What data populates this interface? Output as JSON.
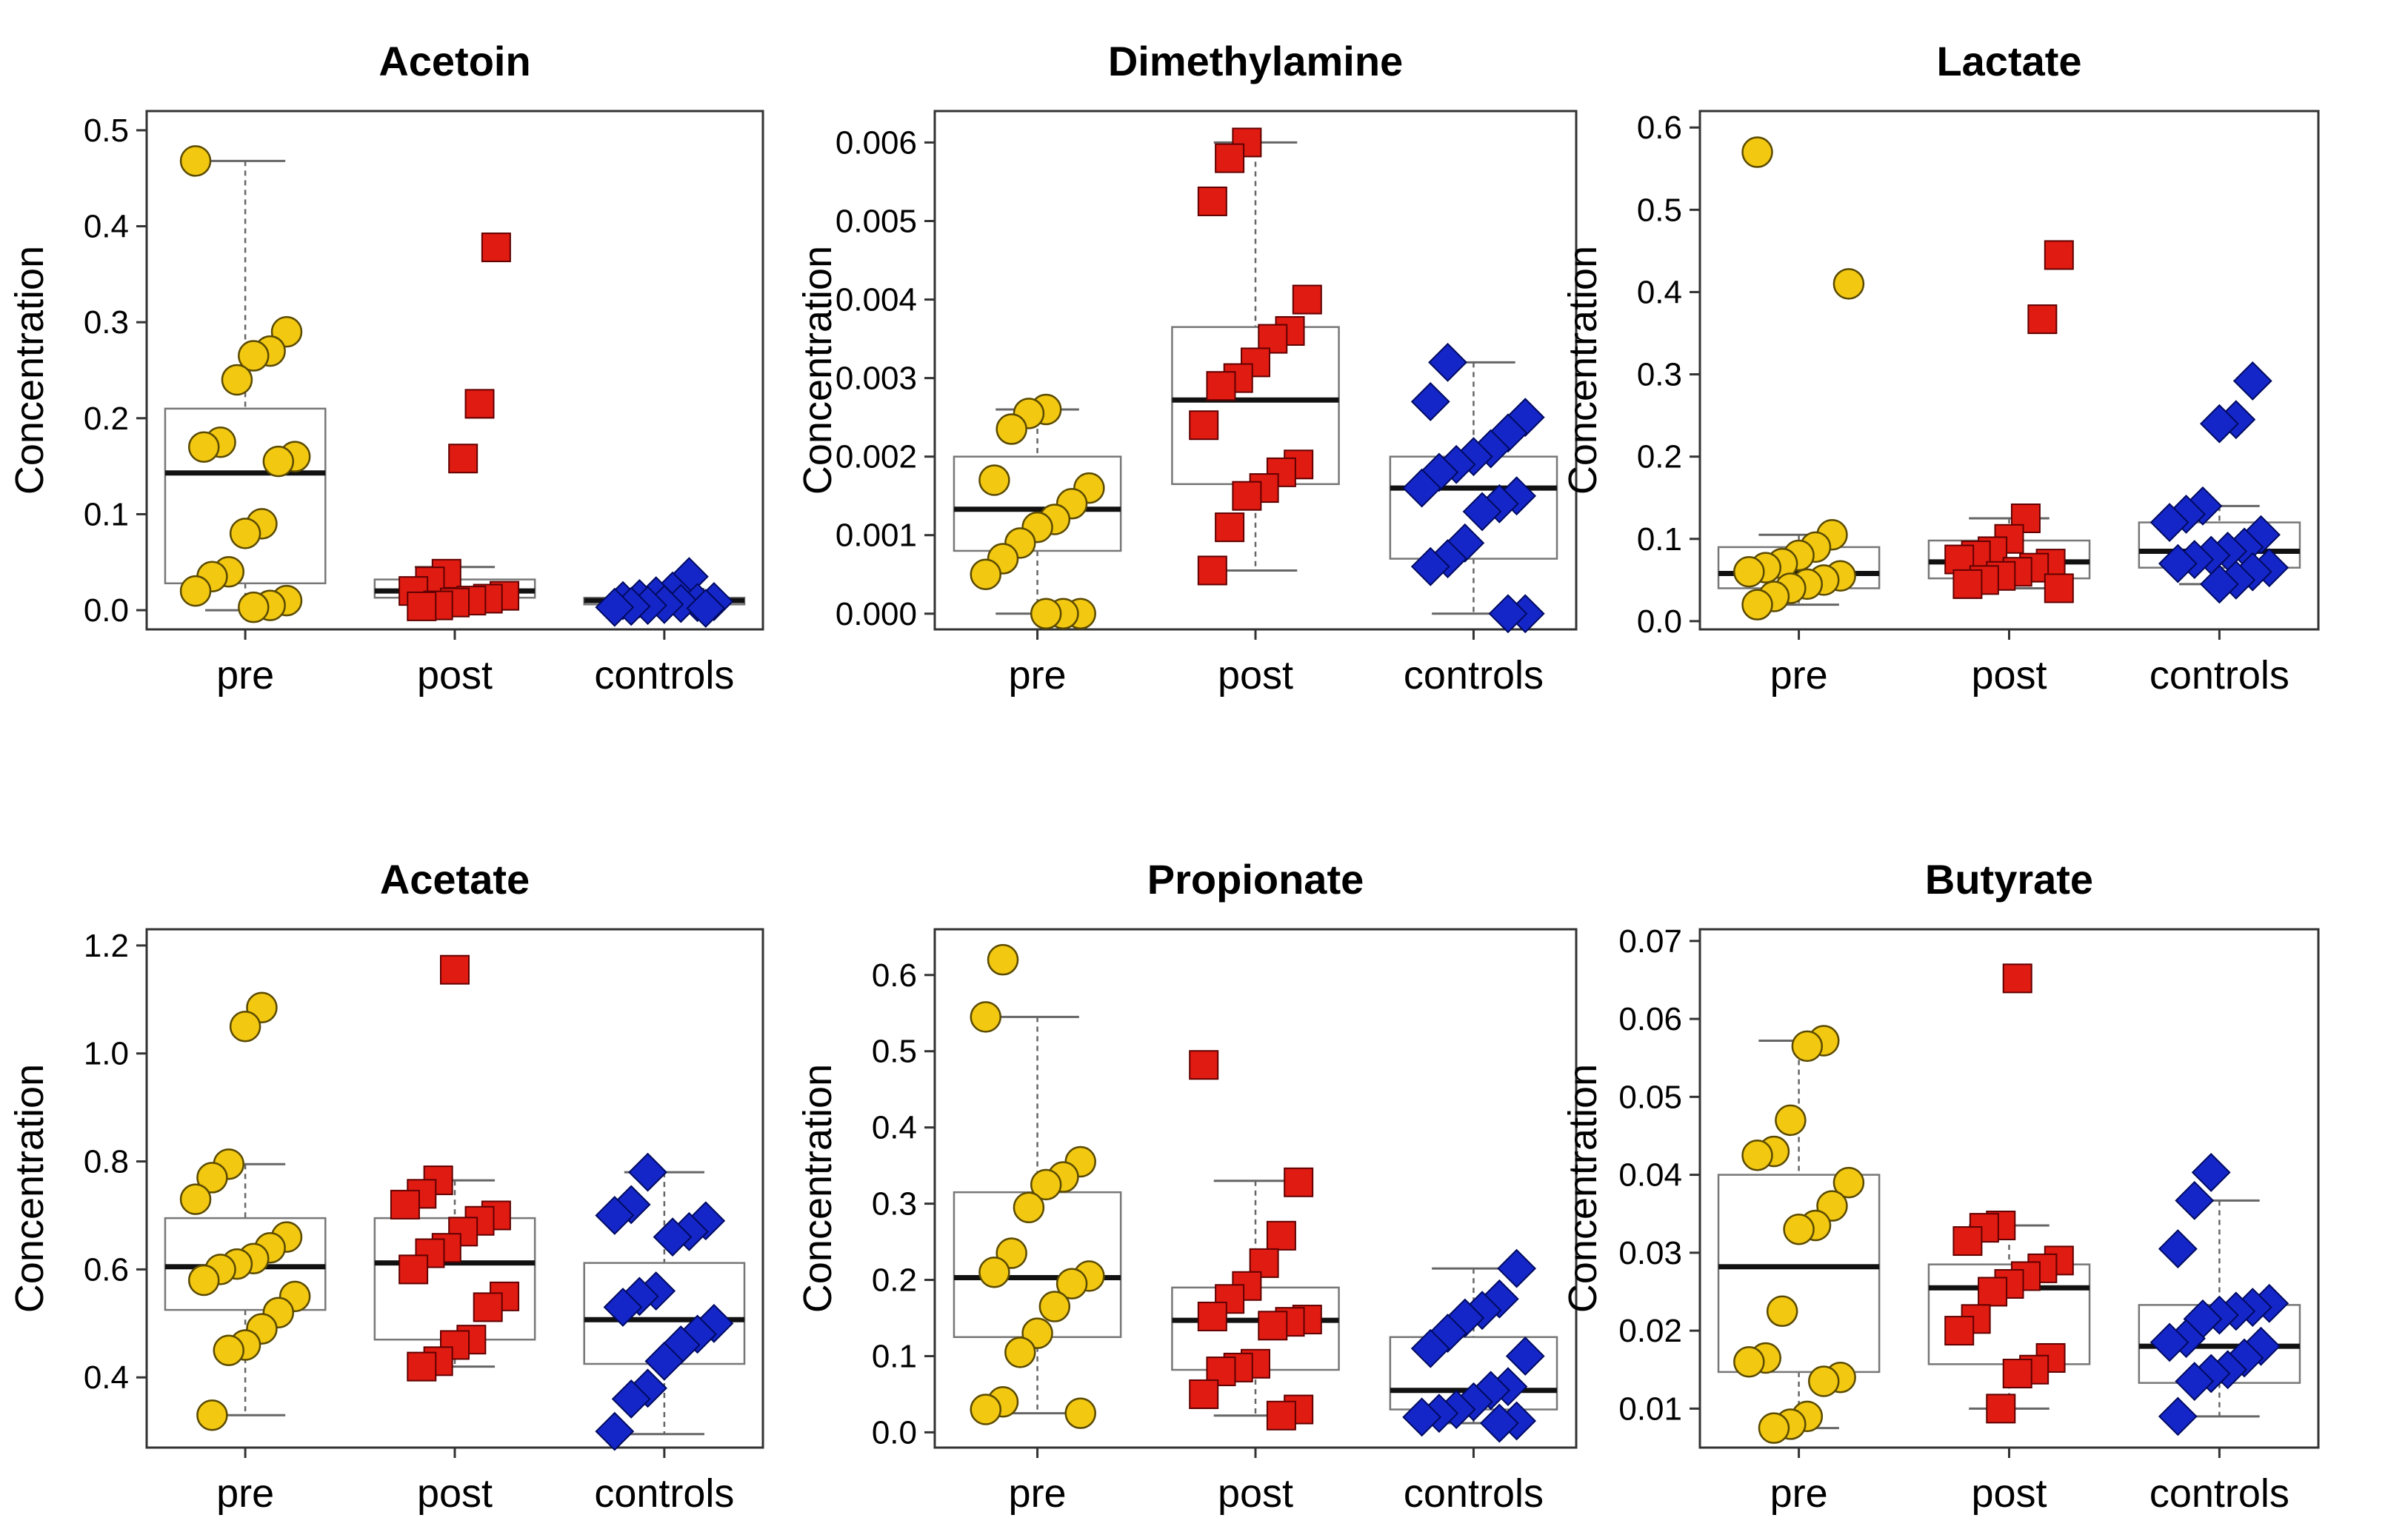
{
  "figure": {
    "group_colors": {
      "pre": "#f2c811",
      "post": "#e01b12",
      "controls": "#1526c8"
    },
    "marker_shapes": {
      "pre": "circle",
      "post": "square",
      "controls": "diamond"
    }
  },
  "chart_data": [
    {
      "type": "box",
      "title": "Acetoin",
      "ylabel": "Concentration",
      "ylim": [
        -0.02,
        0.52
      ],
      "yticks": [
        0.0,
        0.1,
        0.2,
        0.3,
        0.4,
        0.5
      ],
      "tick_labels": [
        "0.0",
        "0.1",
        "0.2",
        "0.3",
        "0.4",
        "0.5"
      ],
      "categories": [
        "pre",
        "post",
        "controls"
      ],
      "boxes": [
        {
          "whisker_low": 0.0,
          "q1": 0.028,
          "median": 0.143,
          "q3": 0.21,
          "whisker_high": 0.468
        },
        {
          "whisker_low": 0.005,
          "q1": 0.013,
          "median": 0.02,
          "q3": 0.032,
          "whisker_high": 0.045
        },
        {
          "whisker_low": 0.002,
          "q1": 0.006,
          "median": 0.01,
          "q3": 0.013,
          "whisker_high": 0.022
        }
      ],
      "points": [
        [
          0.468,
          0.29,
          0.27,
          0.265,
          0.24,
          0.175,
          0.17,
          0.16,
          0.155,
          0.09,
          0.08,
          0.04,
          0.035,
          0.02,
          0.01,
          0.005,
          0.003
        ],
        [
          0.378,
          0.215,
          0.158,
          0.038,
          0.03,
          0.02,
          0.015,
          0.012,
          0.01,
          0.008,
          0.005,
          0.004
        ],
        [
          0.035,
          0.02,
          0.015,
          0.012,
          0.01,
          0.009,
          0.008,
          0.007,
          0.006,
          0.005,
          0.004,
          0.003,
          0.002
        ]
      ]
    },
    {
      "type": "box",
      "title": "Dimethylamine",
      "ylabel": "Concentration",
      "ylim": [
        -0.0002,
        0.0064
      ],
      "yticks": [
        0.0,
        0.001,
        0.002,
        0.003,
        0.004,
        0.005,
        0.006
      ],
      "tick_labels": [
        "0.000",
        "0.001",
        "0.002",
        "0.003",
        "0.004",
        "0.005",
        "0.006"
      ],
      "categories": [
        "pre",
        "post",
        "controls"
      ],
      "boxes": [
        {
          "whisker_low": 0.0,
          "q1": 0.0008,
          "median": 0.00133,
          "q3": 0.002,
          "whisker_high": 0.0026
        },
        {
          "whisker_low": 0.00055,
          "q1": 0.00165,
          "median": 0.00272,
          "q3": 0.00365,
          "whisker_high": 0.006
        },
        {
          "whisker_low": 0.0,
          "q1": 0.0007,
          "median": 0.0016,
          "q3": 0.002,
          "whisker_high": 0.0032
        }
      ],
      "points": [
        [
          0.0026,
          0.00255,
          0.00235,
          0.0017,
          0.0016,
          0.0014,
          0.0012,
          0.0011,
          0.0009,
          0.0007,
          0.0005,
          0.0,
          0.0,
          0.0
        ],
        [
          0.006,
          0.0058,
          0.00525,
          0.004,
          0.0036,
          0.0035,
          0.0032,
          0.003,
          0.0029,
          0.0024,
          0.0019,
          0.0018,
          0.0016,
          0.0015,
          0.0011,
          0.00055
        ],
        [
          0.0032,
          0.0027,
          0.0025,
          0.0023,
          0.0021,
          0.002,
          0.0019,
          0.0018,
          0.0016,
          0.0015,
          0.0014,
          0.0013,
          0.0009,
          0.0007,
          0.0006,
          0.0,
          0.0
        ]
      ]
    },
    {
      "type": "box",
      "title": "Lactate",
      "ylabel": "Concentration",
      "ylim": [
        -0.01,
        0.62
      ],
      "yticks": [
        0.0,
        0.1,
        0.2,
        0.3,
        0.4,
        0.5,
        0.6
      ],
      "tick_labels": [
        "0.0",
        "0.1",
        "0.2",
        "0.3",
        "0.4",
        "0.5",
        "0.6"
      ],
      "categories": [
        "pre",
        "post",
        "controls"
      ],
      "boxes": [
        {
          "whisker_low": 0.02,
          "q1": 0.04,
          "median": 0.058,
          "q3": 0.09,
          "whisker_high": 0.105
        },
        {
          "whisker_low": 0.04,
          "q1": 0.052,
          "median": 0.072,
          "q3": 0.098,
          "whisker_high": 0.125
        },
        {
          "whisker_low": 0.045,
          "q1": 0.065,
          "median": 0.085,
          "q3": 0.12,
          "whisker_high": 0.14
        }
      ],
      "points": [
        [
          0.57,
          0.41,
          0.105,
          0.09,
          0.08,
          0.07,
          0.065,
          0.06,
          0.055,
          0.05,
          0.045,
          0.04,
          0.03,
          0.02
        ],
        [
          0.445,
          0.367,
          0.125,
          0.1,
          0.085,
          0.08,
          0.075,
          0.07,
          0.065,
          0.06,
          0.055,
          0.05,
          0.045,
          0.04
        ],
        [
          0.292,
          0.245,
          0.24,
          0.14,
          0.13,
          0.12,
          0.105,
          0.09,
          0.085,
          0.08,
          0.075,
          0.07,
          0.065,
          0.06,
          0.05,
          0.045
        ]
      ]
    },
    {
      "type": "box",
      "title": "Acetate",
      "ylabel": "Concentration",
      "ylim": [
        0.27,
        1.23
      ],
      "yticks": [
        0.4,
        0.6,
        0.8,
        1.0,
        1.2
      ],
      "tick_labels": [
        "0.4",
        "0.6",
        "0.8",
        "1.0",
        "1.2"
      ],
      "categories": [
        "pre",
        "post",
        "controls"
      ],
      "boxes": [
        {
          "whisker_low": 0.33,
          "q1": 0.525,
          "median": 0.605,
          "q3": 0.695,
          "whisker_high": 0.795
        },
        {
          "whisker_low": 0.42,
          "q1": 0.47,
          "median": 0.612,
          "q3": 0.695,
          "whisker_high": 0.765
        },
        {
          "whisker_low": 0.295,
          "q1": 0.425,
          "median": 0.507,
          "q3": 0.612,
          "whisker_high": 0.78
        }
      ],
      "points": [
        [
          1.085,
          1.05,
          0.795,
          0.77,
          0.73,
          0.66,
          0.64,
          0.62,
          0.61,
          0.6,
          0.58,
          0.55,
          0.52,
          0.49,
          0.46,
          0.45,
          0.33
        ],
        [
          1.155,
          0.765,
          0.74,
          0.72,
          0.7,
          0.69,
          0.67,
          0.64,
          0.63,
          0.6,
          0.55,
          0.53,
          0.47,
          0.46,
          0.43,
          0.42
        ],
        [
          0.78,
          0.72,
          0.7,
          0.69,
          0.67,
          0.66,
          0.56,
          0.55,
          0.53,
          0.5,
          0.48,
          0.46,
          0.43,
          0.38,
          0.36,
          0.3
        ]
      ]
    },
    {
      "type": "box",
      "title": "Propionate",
      "ylabel": "Concentration",
      "ylim": [
        -0.02,
        0.66
      ],
      "yticks": [
        0.0,
        0.1,
        0.2,
        0.3,
        0.4,
        0.5,
        0.6
      ],
      "tick_labels": [
        "0.0",
        "0.1",
        "0.2",
        "0.3",
        "0.4",
        "0.5",
        "0.6"
      ],
      "categories": [
        "pre",
        "post",
        "controls"
      ],
      "boxes": [
        {
          "whisker_low": 0.025,
          "q1": 0.125,
          "median": 0.203,
          "q3": 0.315,
          "whisker_high": 0.545
        },
        {
          "whisker_low": 0.022,
          "q1": 0.082,
          "median": 0.147,
          "q3": 0.19,
          "whisker_high": 0.33
        },
        {
          "whisker_low": 0.012,
          "q1": 0.03,
          "median": 0.055,
          "q3": 0.125,
          "whisker_high": 0.215
        }
      ],
      "points": [
        [
          0.62,
          0.545,
          0.355,
          0.335,
          0.325,
          0.295,
          0.235,
          0.21,
          0.205,
          0.195,
          0.165,
          0.13,
          0.105,
          0.04,
          0.03,
          0.025
        ],
        [
          0.482,
          0.328,
          0.258,
          0.222,
          0.192,
          0.175,
          0.152,
          0.148,
          0.145,
          0.14,
          0.09,
          0.085,
          0.08,
          0.05,
          0.03,
          0.022
        ],
        [
          0.215,
          0.175,
          0.16,
          0.15,
          0.13,
          0.11,
          0.1,
          0.06,
          0.055,
          0.04,
          0.03,
          0.025,
          0.02,
          0.015,
          0.012
        ]
      ]
    },
    {
      "type": "box",
      "title": "Butyrate",
      "ylabel": "Concentration",
      "ylim": [
        0.005,
        0.0715
      ],
      "yticks": [
        0.01,
        0.02,
        0.03,
        0.04,
        0.05,
        0.06,
        0.07
      ],
      "tick_labels": [
        "0.01",
        "0.02",
        "0.03",
        "0.04",
        "0.05",
        "0.06",
        "0.07"
      ],
      "categories": [
        "pre",
        "post",
        "controls"
      ],
      "boxes": [
        {
          "whisker_low": 0.0075,
          "q1": 0.0147,
          "median": 0.0282,
          "q3": 0.04,
          "whisker_high": 0.0572
        },
        {
          "whisker_low": 0.01,
          "q1": 0.0157,
          "median": 0.0255,
          "q3": 0.0285,
          "whisker_high": 0.0335
        },
        {
          "whisker_low": 0.009,
          "q1": 0.0133,
          "median": 0.018,
          "q3": 0.0233,
          "whisker_high": 0.0367
        }
      ],
      "points": [
        [
          0.0572,
          0.0565,
          0.047,
          0.043,
          0.0425,
          0.039,
          0.036,
          0.0335,
          0.033,
          0.0225,
          0.0165,
          0.016,
          0.014,
          0.0135,
          0.009,
          0.008,
          0.0075
        ],
        [
          0.0652,
          0.0335,
          0.0332,
          0.0315,
          0.029,
          0.028,
          0.027,
          0.026,
          0.025,
          0.0215,
          0.02,
          0.0165,
          0.015,
          0.0145,
          0.01
        ],
        [
          0.0403,
          0.0367,
          0.0305,
          0.0235,
          0.023,
          0.0225,
          0.022,
          0.0215,
          0.019,
          0.0185,
          0.018,
          0.0165,
          0.015,
          0.0145,
          0.0135,
          0.009
        ]
      ]
    }
  ]
}
